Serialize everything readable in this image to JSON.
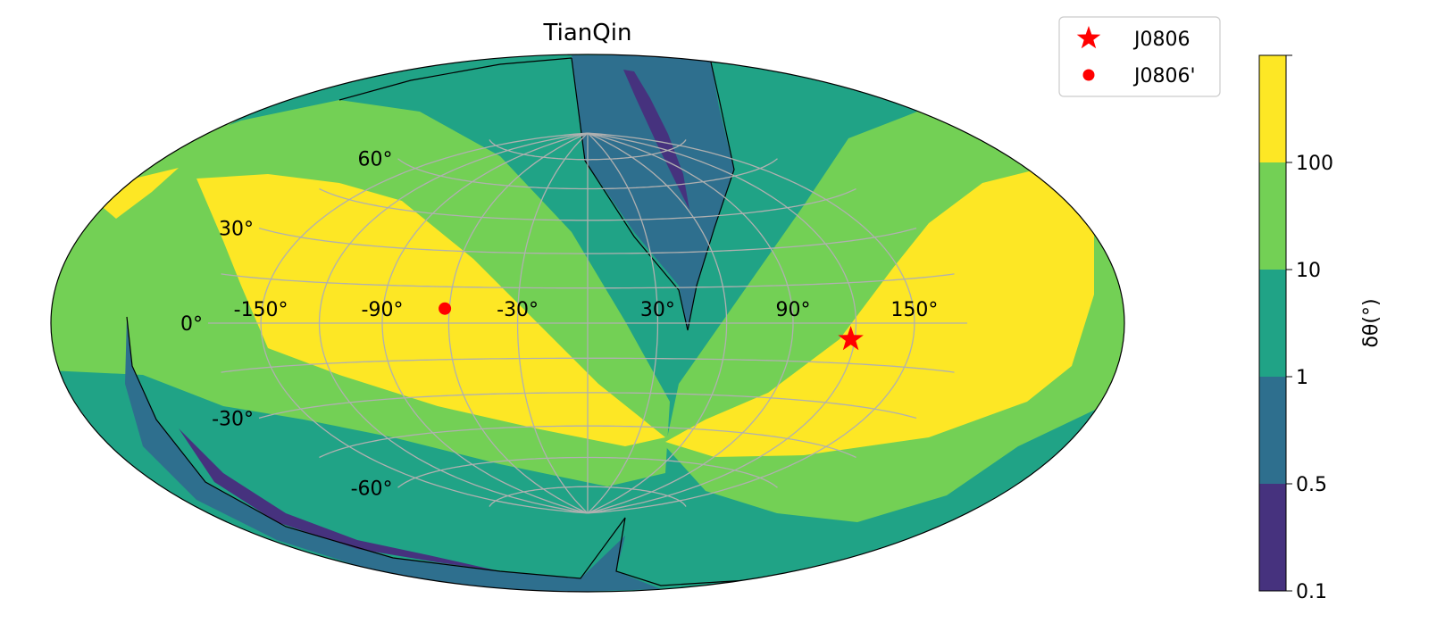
{
  "chart_data": {
    "type": "heatmap",
    "projection": "hammer-aitoff",
    "title": "TianQin",
    "grid": true,
    "lon_tick_labels": [
      "-150°",
      "-90°",
      "-30°",
      "30°",
      "90°",
      "150°"
    ],
    "lon_tick_values": [
      -150,
      -90,
      -30,
      30,
      90,
      150
    ],
    "lat_tick_labels": [
      "-60°",
      "-30°",
      "0°",
      "30°",
      "60°"
    ],
    "lat_tick_values": [
      -60,
      -30,
      0,
      30,
      60
    ],
    "legend": {
      "placement": "top-right",
      "entries": [
        {
          "label": "J0806",
          "marker": "star",
          "lon": 118,
          "lat": -6
        },
        {
          "label": "J0806'",
          "marker": "dot",
          "lon": -62,
          "lat": 6
        }
      ]
    },
    "colorbar": {
      "label": "δθ(°)",
      "tick_labels": [
        "0.1",
        "0.5",
        "1",
        "10",
        "100"
      ],
      "levels": [
        {
          "range": "0.1–0.5",
          "color": "#46327e"
        },
        {
          "range": "0.5–1",
          "color": "#2e6f8e"
        },
        {
          "range": "1–10",
          "color": "#20a386"
        },
        {
          "range": "10–100",
          "color": "#73d055"
        },
        {
          "range": ">100",
          "color": "#fde725"
        }
      ]
    },
    "colors": {
      "level_0": "#46327e",
      "level_1": "#2e6f8e",
      "level_2": "#20a386",
      "level_3": "#73d055",
      "level_4": "#fde725",
      "marker": "#ff0000",
      "grid": "#b0b0b0"
    }
  }
}
